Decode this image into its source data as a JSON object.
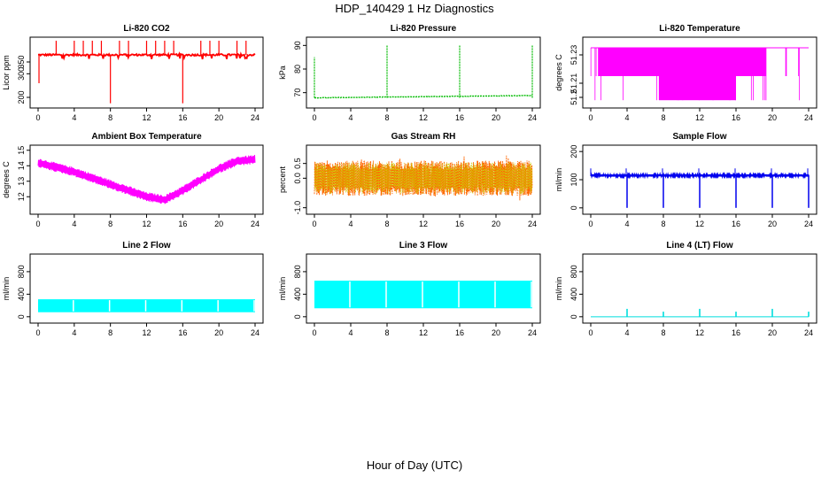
{
  "figure_title": "HDP_140429  1 Hz Diagnostics",
  "shared_xlabel": "Hour of Day (UTC)",
  "chart_data": [
    {
      "type": "line",
      "title": "Li-820 CO2",
      "ylabel": "Licor ppm",
      "color": "#ff0000",
      "xlim": [
        0,
        24
      ],
      "xticks": [
        0,
        4,
        8,
        12,
        16,
        20,
        24
      ],
      "ylim": [
        170,
        440
      ],
      "yticks": [
        200,
        300,
        350
      ],
      "baseline": 380,
      "noise": 4,
      "spikes": [
        [
          2,
          440
        ],
        [
          4,
          440
        ],
        [
          5,
          440
        ],
        [
          6,
          440
        ],
        [
          7,
          440
        ],
        [
          8,
          175
        ],
        [
          9,
          440
        ],
        [
          10,
          440
        ],
        [
          12,
          440
        ],
        [
          13,
          440
        ],
        [
          14,
          440
        ],
        [
          15,
          440
        ],
        [
          16,
          175
        ],
        [
          18,
          440
        ],
        [
          19,
          440
        ],
        [
          20,
          440
        ],
        [
          22,
          440
        ],
        [
          23,
          440
        ]
      ]
    },
    {
      "type": "line",
      "title": "Li-820 Pressure",
      "ylabel": "kPa",
      "color": "#00bb00",
      "xlim": [
        0,
        24
      ],
      "xticks": [
        0,
        4,
        8,
        12,
        16,
        20,
        24
      ],
      "ylim": [
        65,
        92
      ],
      "yticks": [
        70,
        80,
        90
      ],
      "baseline_start": 67.8,
      "baseline_end": 68.8,
      "spikes": [
        [
          0,
          85
        ],
        [
          8,
          90
        ],
        [
          16,
          90
        ],
        [
          24,
          90
        ]
      ]
    },
    {
      "type": "line",
      "title": "Li-820 Temperature",
      "ylabel": "degrees C",
      "color": "#ff00ff",
      "xlim": [
        0,
        24
      ],
      "xticks": [
        0,
        4,
        8,
        12,
        16,
        20,
        24
      ],
      "ylim": [
        51.195,
        51.24
      ],
      "yticks": [
        51.2,
        51.21,
        51.23
      ]
    },
    {
      "type": "line",
      "title": "Ambient Box Temperature",
      "ylabel": "degrees C",
      "color": "#ff00ff",
      "xlim": [
        0,
        24
      ],
      "xticks": [
        0,
        4,
        8,
        12,
        16,
        20,
        24
      ],
      "ylim": [
        11.1,
        15.1
      ],
      "yticks": [
        12,
        13,
        14,
        15
      ],
      "curve": [
        [
          0,
          14.2
        ],
        [
          4,
          13.6
        ],
        [
          8,
          12.8
        ],
        [
          12,
          12.0
        ],
        [
          14,
          11.8
        ],
        [
          16,
          12.4
        ],
        [
          20,
          13.8
        ],
        [
          22,
          14.3
        ],
        [
          24,
          14.4
        ]
      ],
      "band": 0.6
    },
    {
      "type": "line",
      "title": "Gas Stream RH",
      "ylabel": "percent",
      "color": "#ff6600",
      "color2": "#cccc00",
      "xlim": [
        0,
        24
      ],
      "xticks": [
        0,
        4,
        8,
        12,
        16,
        20,
        24
      ],
      "ylim": [
        -1.1,
        1.0
      ],
      "yticks": [
        -1.0,
        0.0,
        0.5
      ]
    },
    {
      "type": "line",
      "title": "Sample Flow",
      "ylabel": "ml/min",
      "color": "#0000ee",
      "xlim": [
        0,
        24
      ],
      "xticks": [
        0,
        4,
        8,
        12,
        16,
        20,
        24
      ],
      "ylim": [
        -10,
        210
      ],
      "yticks": [
        0,
        100,
        200
      ],
      "baseline": 115,
      "dips": [
        4,
        8,
        12,
        16,
        20,
        24
      ]
    },
    {
      "type": "area",
      "title": "Line 2 Flow",
      "ylabel": "ml/min",
      "color": "#00ffff",
      "xlim": [
        0,
        24
      ],
      "xticks": [
        0,
        4,
        8,
        12,
        16,
        20,
        24
      ],
      "ylim": [
        -50,
        1050
      ],
      "yticks": [
        0,
        400,
        800
      ],
      "low": 80,
      "high": 310,
      "gaps": [
        4,
        8,
        12,
        16,
        20,
        24
      ]
    },
    {
      "type": "area",
      "title": "Line 3 Flow",
      "ylabel": "ml/min",
      "color": "#00ffff",
      "xlim": [
        0,
        24
      ],
      "xticks": [
        0,
        4,
        8,
        12,
        16,
        20,
        24
      ],
      "ylim": [
        -50,
        1050
      ],
      "yticks": [
        0,
        400,
        800
      ],
      "low": 150,
      "high": 640,
      "gaps": [
        4,
        8,
        12,
        16,
        20,
        24
      ]
    },
    {
      "type": "line",
      "title": "Line 4 (LT) Flow",
      "ylabel": "ml/min",
      "color": "#00dddd",
      "xlim": [
        0,
        24
      ],
      "xticks": [
        0,
        4,
        8,
        12,
        16,
        20,
        24
      ],
      "ylim": [
        -50,
        1050
      ],
      "yticks": [
        0,
        400,
        800
      ],
      "baseline": 0,
      "spikes": [
        [
          4,
          140
        ],
        [
          8,
          90
        ],
        [
          12,
          140
        ],
        [
          16,
          90
        ],
        [
          20,
          140
        ],
        [
          24,
          90
        ]
      ]
    }
  ]
}
